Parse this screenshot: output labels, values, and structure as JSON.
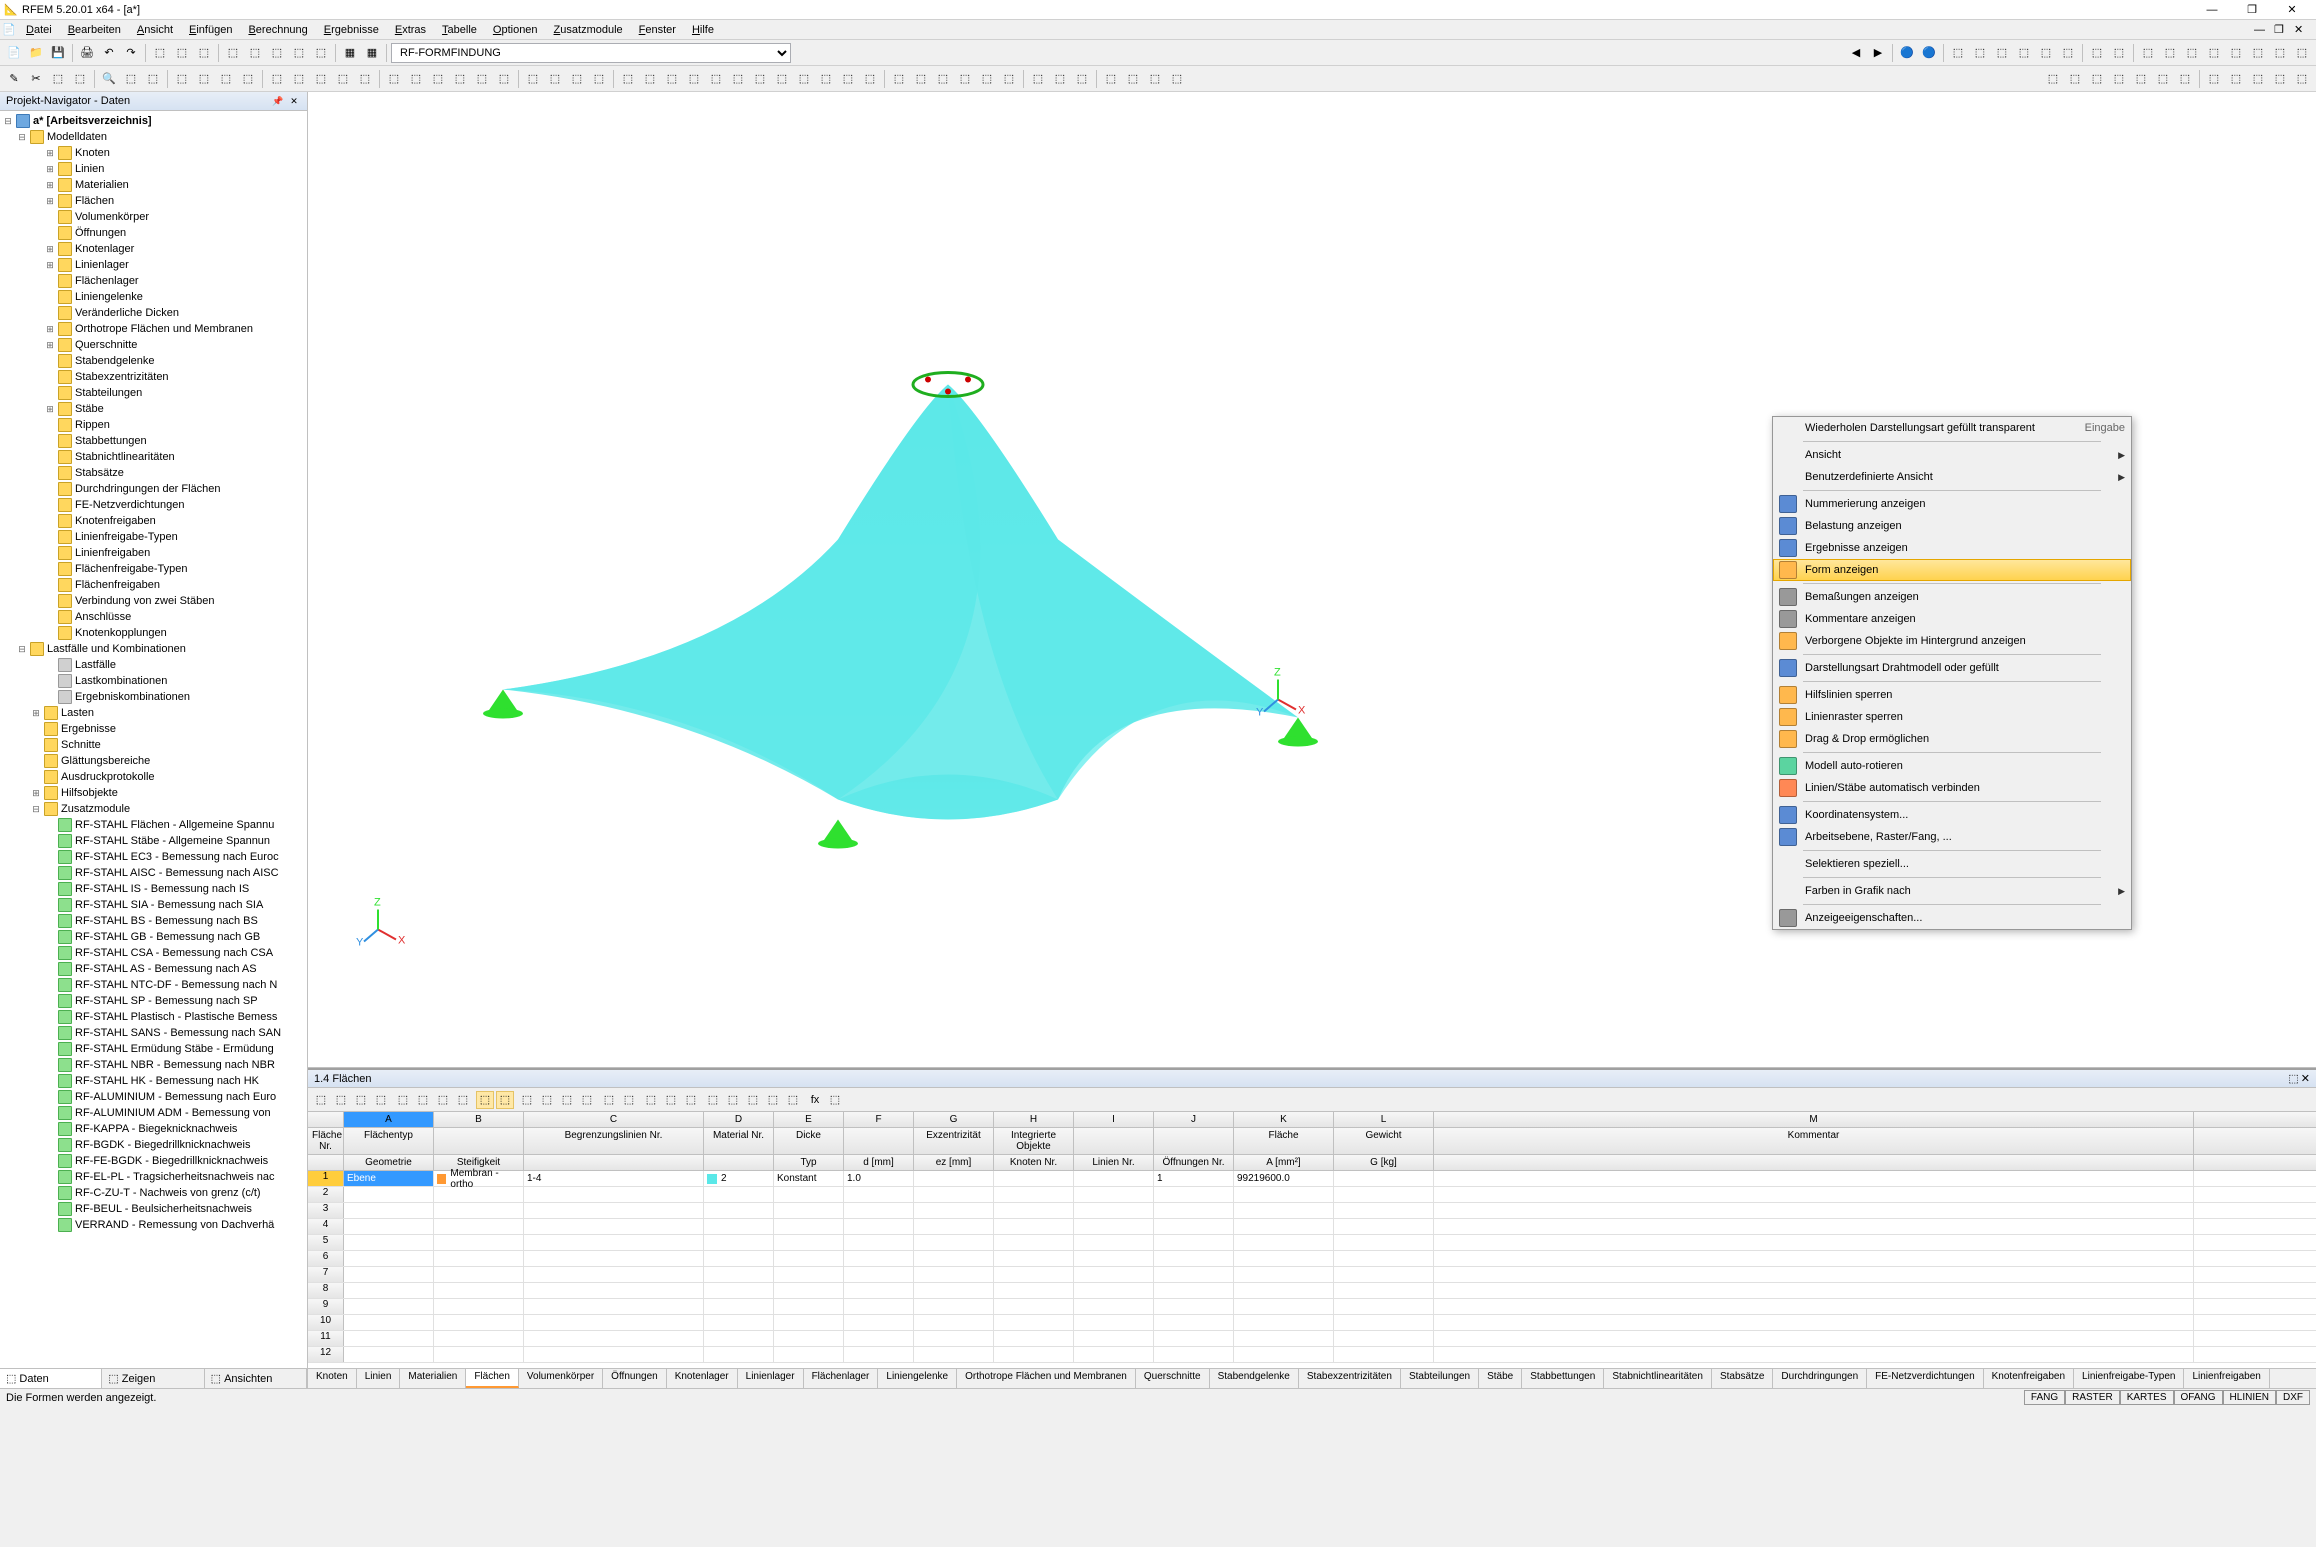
{
  "title": "RFEM 5.20.01 x64 - [a*]",
  "window_controls": {
    "min": "—",
    "max": "❐",
    "close": "✕"
  },
  "menu": [
    "Datei",
    "Bearbeiten",
    "Ansicht",
    "Einfügen",
    "Berechnung",
    "Ergebnisse",
    "Extras",
    "Tabelle",
    "Optionen",
    "Zusatzmodule",
    "Fenster",
    "Hilfe"
  ],
  "toolbar1_combo": "RF-FORMFINDUNG",
  "sidebar": {
    "title": "Projekt-Navigator - Daten",
    "root": "a* [Arbeitsverzeichnis]",
    "modelldaten": "Modelldaten",
    "nodes": [
      {
        "label": "Knoten",
        "depth": 3,
        "exp": "+",
        "icon": "folder-yellow"
      },
      {
        "label": "Linien",
        "depth": 3,
        "exp": "+",
        "icon": "folder-yellow"
      },
      {
        "label": "Materialien",
        "depth": 3,
        "exp": "+",
        "icon": "folder-yellow"
      },
      {
        "label": "Flächen",
        "depth": 3,
        "exp": "+",
        "icon": "folder-yellow"
      },
      {
        "label": "Volumenkörper",
        "depth": 3,
        "exp": "",
        "icon": "folder-yellow"
      },
      {
        "label": "Öffnungen",
        "depth": 3,
        "exp": "",
        "icon": "folder-yellow"
      },
      {
        "label": "Knotenlager",
        "depth": 3,
        "exp": "+",
        "icon": "folder-yellow"
      },
      {
        "label": "Linienlager",
        "depth": 3,
        "exp": "+",
        "icon": "folder-yellow"
      },
      {
        "label": "Flächenlager",
        "depth": 3,
        "exp": "",
        "icon": "folder-yellow"
      },
      {
        "label": "Liniengelenke",
        "depth": 3,
        "exp": "",
        "icon": "folder-yellow"
      },
      {
        "label": "Veränderliche Dicken",
        "depth": 3,
        "exp": "",
        "icon": "folder-yellow"
      },
      {
        "label": "Orthotrope Flächen und Membranen",
        "depth": 3,
        "exp": "+",
        "icon": "folder-yellow"
      },
      {
        "label": "Querschnitte",
        "depth": 3,
        "exp": "+",
        "icon": "folder-yellow"
      },
      {
        "label": "Stabendgelenke",
        "depth": 3,
        "exp": "",
        "icon": "folder-yellow"
      },
      {
        "label": "Stabexzentrizitäten",
        "depth": 3,
        "exp": "",
        "icon": "folder-yellow"
      },
      {
        "label": "Stabteilungen",
        "depth": 3,
        "exp": "",
        "icon": "folder-yellow"
      },
      {
        "label": "Stäbe",
        "depth": 3,
        "exp": "+",
        "icon": "folder-yellow"
      },
      {
        "label": "Rippen",
        "depth": 3,
        "exp": "",
        "icon": "folder-yellow"
      },
      {
        "label": "Stabbettungen",
        "depth": 3,
        "exp": "",
        "icon": "folder-yellow"
      },
      {
        "label": "Stabnichtlinearitäten",
        "depth": 3,
        "exp": "",
        "icon": "folder-yellow"
      },
      {
        "label": "Stabsätze",
        "depth": 3,
        "exp": "",
        "icon": "folder-yellow"
      },
      {
        "label": "Durchdringungen der Flächen",
        "depth": 3,
        "exp": "",
        "icon": "folder-yellow"
      },
      {
        "label": "FE-Netzverdichtungen",
        "depth": 3,
        "exp": "",
        "icon": "folder-yellow"
      },
      {
        "label": "Knotenfreigaben",
        "depth": 3,
        "exp": "",
        "icon": "folder-yellow"
      },
      {
        "label": "Linienfreigabe-Typen",
        "depth": 3,
        "exp": "",
        "icon": "folder-yellow"
      },
      {
        "label": "Linienfreigaben",
        "depth": 3,
        "exp": "",
        "icon": "folder-yellow"
      },
      {
        "label": "Flächenfreigabe-Typen",
        "depth": 3,
        "exp": "",
        "icon": "folder-yellow"
      },
      {
        "label": "Flächenfreigaben",
        "depth": 3,
        "exp": "",
        "icon": "folder-yellow"
      },
      {
        "label": "Verbindung von zwei Stäben",
        "depth": 3,
        "exp": "",
        "icon": "folder-yellow"
      },
      {
        "label": "Anschlüsse",
        "depth": 3,
        "exp": "",
        "icon": "folder-yellow"
      },
      {
        "label": "Knotenkopplungen",
        "depth": 3,
        "exp": "",
        "icon": "folder-yellow"
      }
    ],
    "lastfaelle_grp": "Lastfälle und Kombinationen",
    "lastfaelle_items": [
      {
        "label": "Lastfälle",
        "depth": 3,
        "icon": "doc-grey"
      },
      {
        "label": "Lastkombinationen",
        "depth": 3,
        "icon": "doc-grey"
      },
      {
        "label": "Ergebniskombinationen",
        "depth": 3,
        "icon": "doc-grey"
      }
    ],
    "other_groups": [
      {
        "label": "Lasten",
        "depth": 2,
        "exp": "+",
        "icon": "folder-yellow"
      },
      {
        "label": "Ergebnisse",
        "depth": 2,
        "exp": "",
        "icon": "folder-yellow"
      },
      {
        "label": "Schnitte",
        "depth": 2,
        "exp": "",
        "icon": "folder-yellow"
      },
      {
        "label": "Glättungsbereiche",
        "depth": 2,
        "exp": "",
        "icon": "folder-yellow"
      },
      {
        "label": "Ausdruckprotokolle",
        "depth": 2,
        "exp": "",
        "icon": "folder-yellow"
      },
      {
        "label": "Hilfsobjekte",
        "depth": 2,
        "exp": "+",
        "icon": "folder-yellow"
      },
      {
        "label": "Zusatzmodule",
        "depth": 2,
        "exp": "-",
        "icon": "folder-yellow"
      }
    ],
    "addons": [
      "RF-STAHL Flächen - Allgemeine Spannu",
      "RF-STAHL Stäbe - Allgemeine Spannun",
      "RF-STAHL EC3 - Bemessung nach Euroc",
      "RF-STAHL AISC - Bemessung nach AISC",
      "RF-STAHL IS - Bemessung nach IS",
      "RF-STAHL SIA - Bemessung nach SIA",
      "RF-STAHL BS - Bemessung nach BS",
      "RF-STAHL GB - Bemessung nach GB",
      "RF-STAHL CSA - Bemessung nach CSA",
      "RF-STAHL AS - Bemessung nach AS",
      "RF-STAHL NTC-DF - Bemessung nach N",
      "RF-STAHL SP - Bemessung nach SP",
      "RF-STAHL Plastisch - Plastische Bemess",
      "RF-STAHL SANS - Bemessung nach SAN",
      "RF-STAHL Ermüdung Stäbe - Ermüdung",
      "RF-STAHL NBR - Bemessung nach NBR",
      "RF-STAHL HK - Bemessung nach HK",
      "RF-ALUMINIUM - Bemessung nach Euro",
      "RF-ALUMINIUM ADM - Bemessung von",
      "RF-KAPPA - Biegeknicknachweis",
      "RF-BGDK - Biegedrillknicknachweis",
      "RF-FE-BGDK - Biegedrillknicknachweis",
      "RF-EL-PL - Tragsicherheitsnachweis nac",
      "RF-C-ZU-T - Nachweis von grenz (c/t)",
      "RF-BEUL - Beulsicherheitsnachweis",
      "VERRAND - Remessung von Dachverhä"
    ],
    "tabs": [
      "Daten",
      "Zeigen",
      "Ansichten"
    ]
  },
  "context_menu": {
    "items": [
      {
        "label": "Wiederholen Darstellungsart gefüllt transparent",
        "shortcut": "Eingabe",
        "sep_after": true
      },
      {
        "label": "Ansicht",
        "arrow": true
      },
      {
        "label": "Benutzerdefinierte Ansicht",
        "arrow": true,
        "sep_after": true
      },
      {
        "label": "Nummerierung anzeigen",
        "icon": "#5b8bd4"
      },
      {
        "label": "Belastung anzeigen",
        "icon": "#5b8bd4"
      },
      {
        "label": "Ergebnisse anzeigen",
        "icon": "#5b8bd4"
      },
      {
        "label": "Form anzeigen",
        "icon": "#ffb84d",
        "highlighted": true,
        "sep_after": true
      },
      {
        "label": "Bemaßungen anzeigen",
        "icon": "#999"
      },
      {
        "label": "Kommentare anzeigen",
        "icon": "#999"
      },
      {
        "label": "Verborgene Objekte im Hintergrund anzeigen",
        "icon": "#ffb84d",
        "sep_after": true
      },
      {
        "label": "Darstellungsart Drahtmodell oder gefüllt",
        "icon": "#5b8bd4",
        "sep_after": true
      },
      {
        "label": "Hilfslinien sperren",
        "icon": "#ffb84d"
      },
      {
        "label": "Linienraster sperren",
        "icon": "#ffb84d"
      },
      {
        "label": "Drag & Drop ermöglichen",
        "icon": "#ffb84d",
        "sep_after": true
      },
      {
        "label": "Modell auto-rotieren",
        "icon": "#5bd4a0"
      },
      {
        "label": "Linien/Stäbe automatisch verbinden",
        "icon": "#ff8855",
        "sep_after": true
      },
      {
        "label": "Koordinatensystem...",
        "icon": "#5b8bd4"
      },
      {
        "label": "Arbeitsebene, Raster/Fang, ...",
        "icon": "#5b8bd4",
        "sep_after": true
      },
      {
        "label": "Selektieren speziell...",
        "sep_after": true
      },
      {
        "label": "Farben in Grafik nach",
        "arrow": true,
        "sep_after": true
      },
      {
        "label": "Anzeigeeigenschaften...",
        "icon": "#999"
      }
    ]
  },
  "bottom": {
    "title": "1.4 Flächen",
    "col_letters": [
      "A",
      "B",
      "C",
      "D",
      "E",
      "F",
      "G",
      "H",
      "I",
      "J",
      "K",
      "L",
      "M"
    ],
    "top_headers": [
      "Fläche Nr.",
      "Flächentyp",
      "",
      "Begrenzungslinien Nr.",
      "Material Nr.",
      "Dicke",
      "",
      "Exzentrizität",
      "Integrierte Objekte",
      "",
      "",
      "Fläche",
      "Gewicht",
      "Kommentar"
    ],
    "sub_headers": [
      "",
      "Geometrie",
      "Steifigkeit",
      "",
      "",
      "Typ",
      "d [mm]",
      "ez [mm]",
      "Knoten Nr.",
      "Linien Nr.",
      "Öffnungen Nr.",
      "A [mm²]",
      "G [kg]",
      ""
    ],
    "row1": [
      "1",
      "Ebene",
      "Membran - ortho",
      "1-4",
      "2",
      "Konstant",
      "1.0",
      "",
      "",
      "",
      "1",
      "99219600.0",
      "",
      ""
    ],
    "tabs": [
      "Knoten",
      "Linien",
      "Materialien",
      "Flächen",
      "Volumenkörper",
      "Öffnungen",
      "Knotenlager",
      "Linienlager",
      "Flächenlager",
      "Liniengelenke",
      "Orthotrope Flächen und Membranen",
      "Querschnitte",
      "Stabendgelenke",
      "Stabexzentrizitäten",
      "Stabteilungen",
      "Stäbe",
      "Stabbettungen",
      "Stabnichtlinearitäten",
      "Stabsätze",
      "Durchdringungen",
      "FE-Netzverdichtungen",
      "Knotenfreigaben",
      "Linienfreigabe-Typen",
      "Linienfreigaben"
    ],
    "active_tab": 3
  },
  "status": {
    "text": "Die Formen werden angezeigt.",
    "buttons": [
      "FANG",
      "RASTER",
      "KARTES",
      "OFANG",
      "HLINIEN",
      "DXF"
    ]
  },
  "membrane": {
    "fill": "#5ae8e8",
    "support": "#2fe02f",
    "axes": {
      "x": "#e02f2f",
      "y": "#2f8fe0",
      "z": "#2fe02f"
    }
  }
}
